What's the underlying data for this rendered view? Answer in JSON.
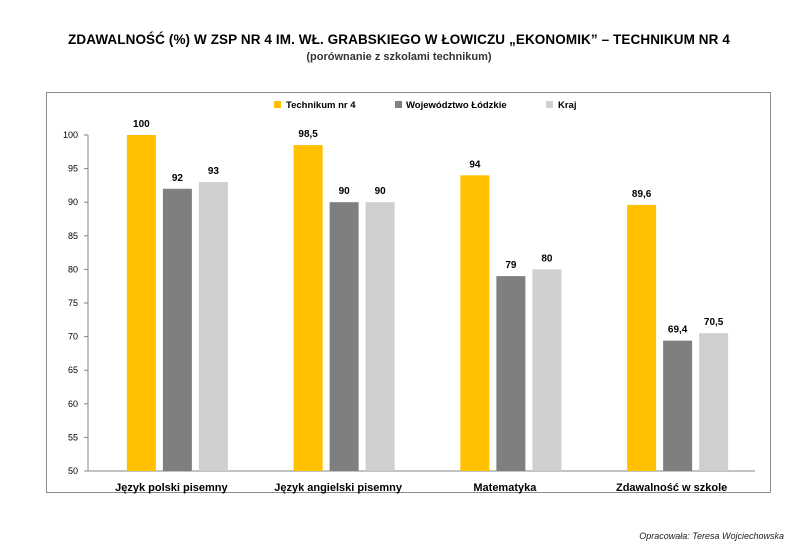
{
  "title": "ZDAWALNOŚĆ (%) W ZSP NR 4 IM. WŁ. GRABSKIEGO W ŁOWICZU „EKONOMIK” – TECHNIKUM NR 4",
  "subtitle": "(porównanie z szkolami technikum)",
  "credit": "Opracowała: Teresa Wojciechowska",
  "colors": {
    "Technikum nr 4": "#FFC000",
    "Województwo Łódzkie": "#7F7F7F",
    "Kraj": "#D0CECE"
  },
  "chart_data": {
    "type": "bar",
    "categories": [
      "Język polski pisemny",
      "Język angielski pisemny",
      "Matematyka",
      "Zdawalność w szkole"
    ],
    "series": [
      {
        "name": "Technikum nr 4",
        "values": [
          100,
          98.5,
          94,
          89.6
        ],
        "labels": [
          "100",
          "98,5",
          "94",
          "89,6"
        ]
      },
      {
        "name": "Województwo Łódzkie",
        "values": [
          92,
          90,
          79,
          69.4
        ],
        "labels": [
          "92",
          "90",
          "79",
          "69,4"
        ]
      },
      {
        "name": "Kraj",
        "values": [
          93,
          90,
          80,
          70.5
        ],
        "labels": [
          "93",
          "90",
          "80",
          "70,5"
        ]
      }
    ],
    "ylim": [
      50,
      100
    ],
    "yticks": [
      50,
      55,
      60,
      65,
      70,
      75,
      80,
      85,
      90,
      95,
      100
    ],
    "grid": false,
    "legend_position": "top"
  }
}
